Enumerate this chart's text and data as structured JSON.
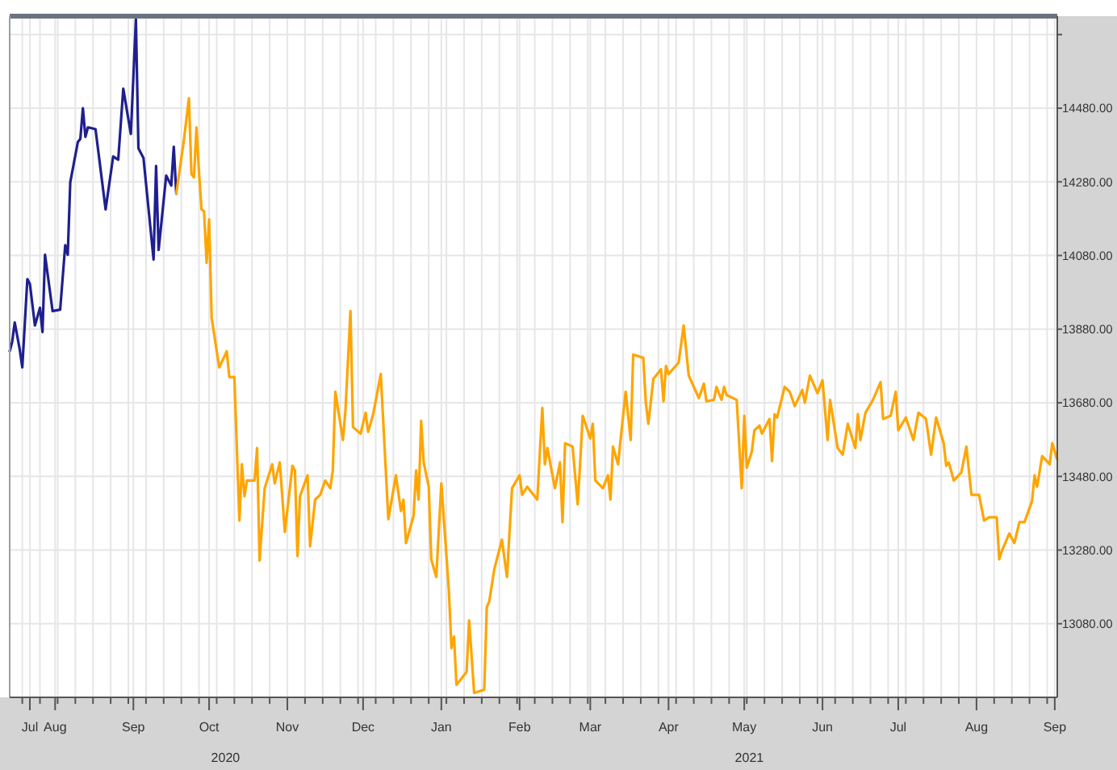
{
  "chart_data": {
    "type": "line",
    "grid": true,
    "xlim": [
      "2020-07-14",
      "2021-09-02"
    ],
    "ylim": [
      12880,
      14730
    ],
    "yticks": [
      {
        "value": 13080,
        "label": "13080.00"
      },
      {
        "value": 13280,
        "label": "13280.00"
      },
      {
        "value": 13480,
        "label": "13480.00"
      },
      {
        "value": 13680,
        "label": "13680.00"
      },
      {
        "value": 13880,
        "label": "13880.00"
      },
      {
        "value": 14080,
        "label": "14080.00"
      },
      {
        "value": 14280,
        "label": "14280.00"
      },
      {
        "value": 14480,
        "label": "14480.00"
      },
      {
        "value": 14680,
        "label": null
      }
    ],
    "xticks": [
      {
        "value": "2020-07-22",
        "label": "Jul"
      },
      {
        "value": "2020-08-01",
        "label": "Aug"
      },
      {
        "value": "2020-09-01",
        "label": "Sep"
      },
      {
        "value": "2020-10-01",
        "label": "Oct"
      },
      {
        "value": "2020-11-01",
        "label": "Nov"
      },
      {
        "value": "2020-12-01",
        "label": "Dec"
      },
      {
        "value": "2021-01-01",
        "label": "Jan"
      },
      {
        "value": "2021-02-01",
        "label": "Feb"
      },
      {
        "value": "2021-03-01",
        "label": "Mar"
      },
      {
        "value": "2021-04-01",
        "label": "Apr"
      },
      {
        "value": "2021-05-01",
        "label": "May"
      },
      {
        "value": "2021-06-01",
        "label": "Jun"
      },
      {
        "value": "2021-07-01",
        "label": "Jul"
      },
      {
        "value": "2021-08-01",
        "label": "Aug"
      },
      {
        "value": "2021-09-01",
        "label": "Sep"
      },
      {
        "value": "2020-07-19",
        "label": null
      },
      {
        "value": "2020-07-26",
        "label": null
      },
      {
        "value": "2020-08-02",
        "label": null
      },
      {
        "value": "2020-08-09",
        "label": null
      },
      {
        "value": "2020-08-16",
        "label": null
      },
      {
        "value": "2020-08-23",
        "label": null
      },
      {
        "value": "2020-08-30",
        "label": null
      },
      {
        "value": "2020-09-06",
        "label": null
      },
      {
        "value": "2020-09-13",
        "label": null
      },
      {
        "value": "2020-09-20",
        "label": null
      },
      {
        "value": "2020-09-27",
        "label": null
      },
      {
        "value": "2020-10-04",
        "label": null
      },
      {
        "value": "2020-10-11",
        "label": null
      },
      {
        "value": "2020-10-18",
        "label": null
      },
      {
        "value": "2020-10-25",
        "label": null
      },
      {
        "value": "2020-11-08",
        "label": null
      },
      {
        "value": "2020-11-15",
        "label": null
      },
      {
        "value": "2020-11-22",
        "label": null
      },
      {
        "value": "2020-11-29",
        "label": null
      },
      {
        "value": "2020-12-06",
        "label": null
      },
      {
        "value": "2020-12-13",
        "label": null
      },
      {
        "value": "2020-12-20",
        "label": null
      },
      {
        "value": "2020-12-27",
        "label": null
      },
      {
        "value": "2021-01-03",
        "label": null
      },
      {
        "value": "2021-01-10",
        "label": null
      },
      {
        "value": "2021-01-17",
        "label": null
      },
      {
        "value": "2021-01-24",
        "label": null
      },
      {
        "value": "2021-01-31",
        "label": null
      },
      {
        "value": "2021-02-07",
        "label": null
      },
      {
        "value": "2021-02-14",
        "label": null
      },
      {
        "value": "2021-02-21",
        "label": null
      },
      {
        "value": "2021-02-28",
        "label": null
      },
      {
        "value": "2021-03-07",
        "label": null
      },
      {
        "value": "2021-03-14",
        "label": null
      },
      {
        "value": "2021-03-21",
        "label": null
      },
      {
        "value": "2021-03-28",
        "label": null
      },
      {
        "value": "2021-04-04",
        "label": null
      },
      {
        "value": "2021-04-11",
        "label": null
      },
      {
        "value": "2021-04-18",
        "label": null
      },
      {
        "value": "2021-04-25",
        "label": null
      },
      {
        "value": "2021-05-02",
        "label": null
      },
      {
        "value": "2021-05-09",
        "label": null
      },
      {
        "value": "2021-05-16",
        "label": null
      },
      {
        "value": "2021-05-23",
        "label": null
      },
      {
        "value": "2021-05-30",
        "label": null
      },
      {
        "value": "2021-06-06",
        "label": null
      },
      {
        "value": "2021-06-13",
        "label": null
      },
      {
        "value": "2021-06-20",
        "label": null
      },
      {
        "value": "2021-06-27",
        "label": null
      },
      {
        "value": "2021-07-04",
        "label": null
      },
      {
        "value": "2021-07-11",
        "label": null
      },
      {
        "value": "2021-07-18",
        "label": null
      },
      {
        "value": "2021-07-25",
        "label": null
      },
      {
        "value": "2021-08-08",
        "label": null
      },
      {
        "value": "2021-08-15",
        "label": null
      },
      {
        "value": "2021-08-22",
        "label": null
      },
      {
        "value": "2021-08-29",
        "label": null
      }
    ],
    "annotations": [
      "2020",
      "2021"
    ],
    "series": [
      {
        "color": "#1f1f8f",
        "x": [
          "2020-07-14",
          "2020-07-15",
          "2020-07-16",
          "2020-07-18",
          "2020-07-19",
          "2020-07-21",
          "2020-07-22",
          "2020-07-24",
          "2020-07-26",
          "2020-07-27",
          "2020-07-28",
          "2020-07-31",
          "2020-08-03",
          "2020-08-05",
          "2020-08-06",
          "2020-08-07",
          "2020-08-10",
          "2020-08-11",
          "2020-08-12",
          "2020-08-13",
          "2020-08-14",
          "2020-08-17",
          "2020-08-21",
          "2020-08-24",
          "2020-08-26",
          "2020-08-28",
          "2020-08-31",
          "2020-09-02",
          "2020-09-03",
          "2020-09-05",
          "2020-09-09",
          "2020-09-10",
          "2020-09-11",
          "2020-09-14",
          "2020-09-16",
          "2020-09-17",
          "2020-09-18"
        ],
        "values": [
          13820,
          13846,
          13898,
          13824,
          13776,
          14016,
          14003,
          13890,
          13938,
          13872,
          14082,
          13929,
          13933,
          14108,
          14082,
          14279,
          14388,
          14397,
          14480,
          14402,
          14428,
          14423,
          14205,
          14349,
          14340,
          14533,
          14410,
          14721,
          14371,
          14345,
          14069,
          14323,
          14095,
          14297,
          14270,
          14375,
          14248
        ]
      },
      {
        "color": "#ffa500",
        "x": [
          "2020-09-18",
          "2020-09-21",
          "2020-09-23",
          "2020-09-24",
          "2020-09-25",
          "2020-09-26",
          "2020-09-27",
          "2020-09-28",
          "2020-09-29",
          "2020-09-30",
          "2020-10-01",
          "2020-10-02",
          "2020-10-05",
          "2020-10-08",
          "2020-10-09",
          "2020-10-11",
          "2020-10-13",
          "2020-10-14",
          "2020-10-15",
          "2020-10-16",
          "2020-10-19",
          "2020-10-20",
          "2020-10-21",
          "2020-10-23",
          "2020-10-26",
          "2020-10-27",
          "2020-10-29",
          "2020-10-31",
          "2020-11-03",
          "2020-11-04",
          "2020-11-05",
          "2020-11-06",
          "2020-11-09",
          "2020-11-10",
          "2020-11-12",
          "2020-11-14",
          "2020-11-16",
          "2020-11-18",
          "2020-11-19",
          "2020-11-20",
          "2020-11-23",
          "2020-11-24",
          "2020-11-26",
          "2020-11-27",
          "2020-11-30",
          "2020-12-02",
          "2020-12-03",
          "2020-12-05",
          "2020-12-08",
          "2020-12-11",
          "2020-12-14",
          "2020-12-16",
          "2020-12-17",
          "2020-12-18",
          "2020-12-21",
          "2020-12-22",
          "2020-12-23",
          "2020-12-24",
          "2020-12-25",
          "2020-12-27",
          "2020-12-28",
          "2020-12-30",
          "2021-01-01",
          "2021-01-04",
          "2021-01-05",
          "2021-01-06",
          "2021-01-07",
          "2021-01-11",
          "2021-01-12",
          "2021-01-14",
          "2021-01-18",
          "2021-01-19",
          "2021-01-20",
          "2021-01-22",
          "2021-01-25",
          "2021-01-27",
          "2021-01-29",
          "2021-02-01",
          "2021-02-02",
          "2021-02-04",
          "2021-02-08",
          "2021-02-10",
          "2021-02-11",
          "2021-02-12",
          "2021-02-15",
          "2021-02-17",
          "2021-02-18",
          "2021-02-19",
          "2021-02-22",
          "2021-02-24",
          "2021-02-25",
          "2021-02-26",
          "2021-03-01",
          "2021-03-02",
          "2021-03-03",
          "2021-03-06",
          "2021-03-08",
          "2021-03-09",
          "2021-03-10",
          "2021-03-12",
          "2021-03-15",
          "2021-03-17",
          "2021-03-18",
          "2021-03-22",
          "2021-03-23",
          "2021-03-24",
          "2021-03-26",
          "2021-03-29",
          "2021-03-30",
          "2021-03-31",
          "2021-04-01",
          "2021-04-05",
          "2021-04-07",
          "2021-04-09",
          "2021-04-13",
          "2021-04-15",
          "2021-04-16",
          "2021-04-19",
          "2021-04-20",
          "2021-04-22",
          "2021-04-23",
          "2021-04-24",
          "2021-04-28",
          "2021-04-30",
          "2021-05-01",
          "2021-05-02",
          "2021-05-04",
          "2021-05-05",
          "2021-05-07",
          "2021-05-08",
          "2021-05-11",
          "2021-05-12",
          "2021-05-13",
          "2021-05-14",
          "2021-05-17",
          "2021-05-19",
          "2021-05-21",
          "2021-05-24",
          "2021-05-25",
          "2021-05-27",
          "2021-05-30",
          "2021-06-01",
          "2021-06-03",
          "2021-06-04",
          "2021-06-07",
          "2021-06-09",
          "2021-06-11",
          "2021-06-14",
          "2021-06-15",
          "2021-06-16",
          "2021-06-18",
          "2021-06-21",
          "2021-06-24",
          "2021-06-25",
          "2021-06-28",
          "2021-06-30",
          "2021-07-01",
          "2021-07-04",
          "2021-07-07",
          "2021-07-09",
          "2021-07-12",
          "2021-07-14",
          "2021-07-16",
          "2021-07-19",
          "2021-07-20",
          "2021-07-21",
          "2021-07-23",
          "2021-07-26",
          "2021-07-28",
          "2021-07-30",
          "2021-08-02",
          "2021-08-04",
          "2021-08-06",
          "2021-08-09",
          "2021-08-10",
          "2021-08-11",
          "2021-08-14",
          "2021-08-16",
          "2021-08-18",
          "2021-08-20",
          "2021-08-23",
          "2021-08-24",
          "2021-08-25",
          "2021-08-27",
          "2021-08-30",
          "2021-08-31",
          "2021-09-02"
        ],
        "values": [
          14248,
          14393,
          14507,
          14301,
          14292,
          14428,
          14305,
          14205,
          14200,
          14060,
          14178,
          13911,
          13776,
          13820,
          13750,
          13750,
          13360,
          13513,
          13426,
          13469,
          13469,
          13557,
          13251,
          13448,
          13513,
          13461,
          13518,
          13329,
          13509,
          13496,
          13264,
          13426,
          13483,
          13290,
          13417,
          13430,
          13469,
          13448,
          13496,
          13710,
          13579,
          13658,
          13929,
          13614,
          13596,
          13653,
          13601,
          13649,
          13758,
          13364,
          13483,
          13386,
          13417,
          13299,
          13373,
          13496,
          13417,
          13631,
          13518,
          13452,
          13255,
          13207,
          13461,
          13168,
          13014,
          13045,
          12914,
          12949,
          13089,
          12892,
          12901,
          13124,
          13141,
          13229,
          13308,
          13207,
          13448,
          13483,
          13430,
          13452,
          13417,
          13666,
          13513,
          13557,
          13448,
          13518,
          13356,
          13570,
          13561,
          13404,
          13518,
          13645,
          13583,
          13623,
          13469,
          13448,
          13483,
          13417,
          13561,
          13513,
          13710,
          13579,
          13811,
          13802,
          13680,
          13623,
          13745,
          13771,
          13684,
          13780,
          13758,
          13789,
          13890,
          13754,
          13693,
          13732,
          13684,
          13688,
          13723,
          13688,
          13723,
          13701,
          13688,
          13448,
          13645,
          13504,
          13548,
          13605,
          13618,
          13596,
          13636,
          13522,
          13649,
          13640,
          13723,
          13710,
          13671,
          13715,
          13680,
          13754,
          13706,
          13741,
          13579,
          13688,
          13557,
          13539,
          13623,
          13557,
          13649,
          13579,
          13653,
          13688,
          13736,
          13636,
          13645,
          13710,
          13605,
          13640,
          13579,
          13653,
          13636,
          13539,
          13640,
          13570,
          13509,
          13518,
          13469,
          13491,
          13561,
          13430,
          13430,
          13360,
          13369,
          13369,
          13255,
          13277,
          13325,
          13299,
          13356,
          13356,
          13413,
          13483,
          13452,
          13535,
          13513,
          13570,
          13526
        ]
      }
    ]
  }
}
